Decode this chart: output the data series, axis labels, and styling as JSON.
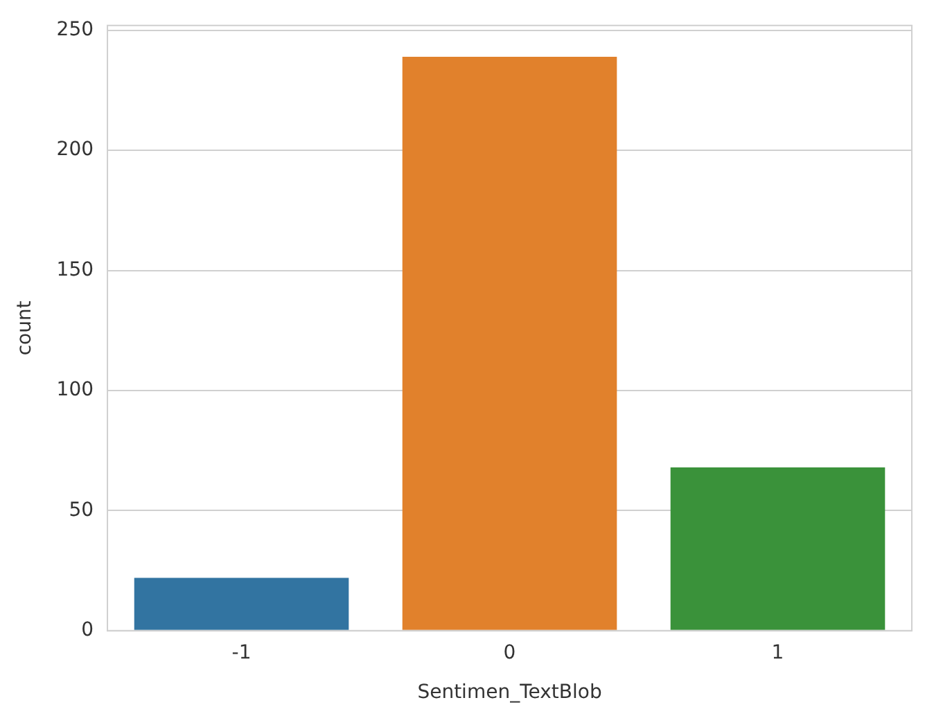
{
  "chart_data": {
    "type": "bar",
    "xlabel": "Sentimen_TextBlob",
    "ylabel": "count",
    "categories": [
      "-1",
      "0",
      "1"
    ],
    "values": [
      22,
      239,
      68
    ],
    "colors": [
      "#3274a1",
      "#e1812c",
      "#3a923a"
    ],
    "ylim": [
      0,
      252
    ],
    "yticks": [
      0,
      50,
      100,
      150,
      200,
      250
    ],
    "grid": "y",
    "legend": false
  }
}
